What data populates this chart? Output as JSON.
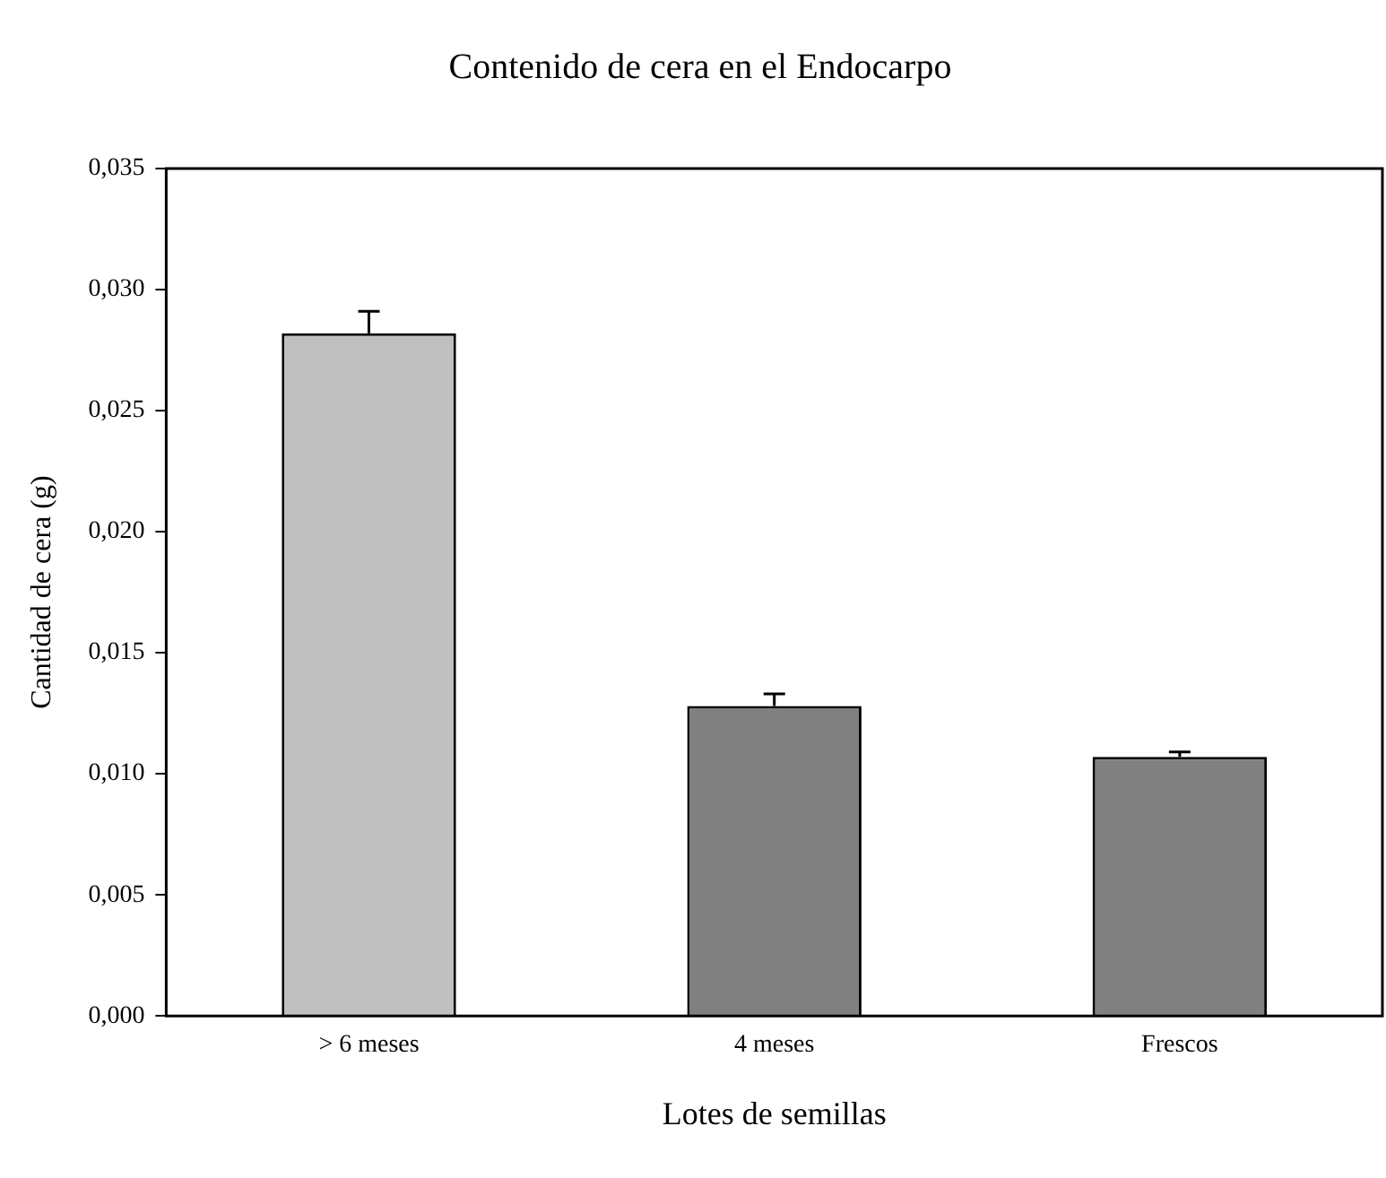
{
  "chart_data": {
    "type": "bar",
    "title": "Contenido de cera en el Endocarpo",
    "xlabel": "Lotes de semillas",
    "ylabel": "Cantidad de cera (g)",
    "categories": [
      "> 6 meses",
      "4 meses",
      "Frescos"
    ],
    "values": [
      0.0282,
      0.0128,
      0.0107
    ],
    "colors": [
      "#c0c0c0",
      "#808080",
      "#808080"
    ],
    "errors": [
      [
        0.0282,
        0.0291
      ],
      [
        0.0128,
        0.0133
      ],
      [
        0.0107,
        0.0109
      ]
    ],
    "ylim": [
      0,
      0.035
    ],
    "yticks": [
      {
        "value": 0,
        "label": "0,000"
      },
      {
        "value": 0.005,
        "label": "0,005"
      },
      {
        "value": 0.01,
        "label": "0,010"
      },
      {
        "value": 0.015,
        "label": "0,015"
      },
      {
        "value": 0.02,
        "label": "0,020"
      },
      {
        "value": 0.025,
        "label": "0,025"
      },
      {
        "value": 0.03,
        "label": "0,030"
      },
      {
        "value": 0.035,
        "label": "0,035"
      }
    ],
    "grid": false,
    "legend": false
  }
}
